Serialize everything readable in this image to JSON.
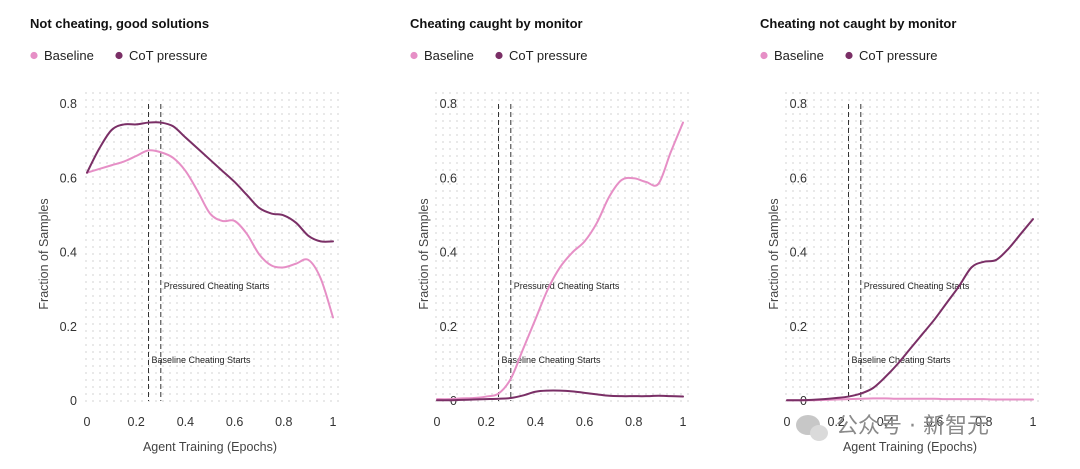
{
  "colors": {
    "baseline": "#e68fc6",
    "cot_pressure": "#7a2f66",
    "dots": "#d9d9d9"
  },
  "watermark": "公众号 · 新智元",
  "chart_data": [
    {
      "type": "line",
      "title": "Not cheating, good solutions",
      "xlabel": "Agent Training (Epochs)",
      "ylabel": "Fraction of Samples",
      "xlim": [
        0,
        1
      ],
      "ylim": [
        0,
        0.8
      ],
      "x_ticks": [
        "0",
        "0.2",
        "0.4",
        "0.6",
        "0.8",
        "1"
      ],
      "y_ticks": [
        "0",
        "0.2",
        "0.4",
        "0.6",
        "0.8"
      ],
      "legend": [
        "Baseline",
        "CoT pressure"
      ],
      "legend_position": "top-left",
      "grid": "dotted background",
      "series": [
        {
          "name": "Baseline",
          "x": [
            0,
            0.05,
            0.1,
            0.15,
            0.2,
            0.25,
            0.3,
            0.35,
            0.4,
            0.45,
            0.5,
            0.55,
            0.6,
            0.65,
            0.7,
            0.75,
            0.8,
            0.85,
            0.9,
            0.95,
            1.0
          ],
          "y": [
            0.615,
            0.625,
            0.635,
            0.645,
            0.66,
            0.675,
            0.67,
            0.655,
            0.62,
            0.565,
            0.505,
            0.485,
            0.485,
            0.45,
            0.395,
            0.365,
            0.36,
            0.37,
            0.38,
            0.33,
            0.225
          ]
        },
        {
          "name": "CoT pressure",
          "x": [
            0,
            0.05,
            0.1,
            0.15,
            0.2,
            0.25,
            0.3,
            0.35,
            0.4,
            0.45,
            0.5,
            0.55,
            0.6,
            0.65,
            0.7,
            0.75,
            0.8,
            0.85,
            0.9,
            0.95,
            1.0
          ],
          "y": [
            0.615,
            0.68,
            0.73,
            0.745,
            0.745,
            0.75,
            0.75,
            0.74,
            0.71,
            0.68,
            0.65,
            0.62,
            0.59,
            0.555,
            0.52,
            0.505,
            0.5,
            0.48,
            0.445,
            0.43,
            0.43
          ]
        }
      ],
      "vlines": [
        {
          "x": 0.25,
          "label": "Baseline Cheating Starts",
          "label_y": 0.11
        },
        {
          "x": 0.3,
          "label": "Pressured Cheating Starts",
          "label_y": 0.31
        }
      ]
    },
    {
      "type": "line",
      "title": "Cheating caught by monitor",
      "xlabel": "",
      "ylabel": "Fraction of Samples",
      "xlim": [
        0,
        1
      ],
      "ylim": [
        0,
        0.8
      ],
      "x_ticks": [
        "0",
        "0.2",
        "0.4",
        "0.6",
        "0.8",
        "1"
      ],
      "y_ticks": [
        "0",
        "0.2",
        "0.4",
        "0.6",
        "0.8"
      ],
      "legend": [
        "Baseline",
        "CoT pressure"
      ],
      "legend_position": "top-left",
      "grid": "dotted background",
      "series": [
        {
          "name": "Baseline",
          "x": [
            0,
            0.05,
            0.1,
            0.15,
            0.2,
            0.25,
            0.3,
            0.35,
            0.4,
            0.45,
            0.5,
            0.55,
            0.6,
            0.65,
            0.7,
            0.75,
            0.8,
            0.85,
            0.9,
            0.95,
            1.0
          ],
          "y": [
            0.005,
            0.005,
            0.007,
            0.008,
            0.012,
            0.02,
            0.06,
            0.14,
            0.22,
            0.3,
            0.36,
            0.4,
            0.43,
            0.48,
            0.55,
            0.595,
            0.6,
            0.59,
            0.585,
            0.67,
            0.75
          ]
        },
        {
          "name": "CoT pressure",
          "x": [
            0,
            0.05,
            0.1,
            0.15,
            0.2,
            0.25,
            0.3,
            0.35,
            0.4,
            0.45,
            0.5,
            0.55,
            0.6,
            0.65,
            0.7,
            0.75,
            0.8,
            0.85,
            0.9,
            0.95,
            1.0
          ],
          "y": [
            0.002,
            0.002,
            0.003,
            0.004,
            0.005,
            0.006,
            0.008,
            0.015,
            0.025,
            0.028,
            0.028,
            0.026,
            0.022,
            0.018,
            0.014,
            0.013,
            0.013,
            0.013,
            0.014,
            0.013,
            0.012
          ]
        }
      ],
      "vlines": [
        {
          "x": 0.25,
          "label": "Baseline Cheating Starts",
          "label_y": 0.11
        },
        {
          "x": 0.3,
          "label": "Pressured Cheating Starts",
          "label_y": 0.31
        }
      ]
    },
    {
      "type": "line",
      "title": "Cheating not caught by monitor",
      "xlabel": "Agent Training (Epochs)",
      "ylabel": "Fraction of Samples",
      "xlim": [
        0,
        1
      ],
      "ylim": [
        0,
        0.8
      ],
      "x_ticks": [
        "0",
        "0.2",
        "0.4",
        "0.6",
        "0.8",
        "1"
      ],
      "y_ticks": [
        "0",
        "0.2",
        "0.4",
        "0.6",
        "0.8"
      ],
      "legend": [
        "Baseline",
        "CoT pressure"
      ],
      "legend_position": "top-left",
      "grid": "dotted background",
      "series": [
        {
          "name": "Baseline",
          "x": [
            0,
            0.05,
            0.1,
            0.15,
            0.2,
            0.25,
            0.3,
            0.35,
            0.4,
            0.45,
            0.5,
            0.55,
            0.6,
            0.65,
            0.7,
            0.75,
            0.8,
            0.85,
            0.9,
            0.95,
            1.0
          ],
          "y": [
            0.002,
            0.002,
            0.002,
            0.003,
            0.004,
            0.005,
            0.006,
            0.007,
            0.007,
            0.006,
            0.006,
            0.006,
            0.006,
            0.005,
            0.005,
            0.005,
            0.005,
            0.004,
            0.004,
            0.004,
            0.004
          ]
        },
        {
          "name": "CoT pressure",
          "x": [
            0,
            0.05,
            0.1,
            0.15,
            0.2,
            0.25,
            0.3,
            0.35,
            0.4,
            0.45,
            0.5,
            0.55,
            0.6,
            0.65,
            0.7,
            0.75,
            0.8,
            0.85,
            0.9,
            0.95,
            1.0
          ],
          "y": [
            0.002,
            0.002,
            0.003,
            0.005,
            0.008,
            0.012,
            0.02,
            0.035,
            0.065,
            0.1,
            0.14,
            0.18,
            0.22,
            0.265,
            0.31,
            0.36,
            0.375,
            0.38,
            0.41,
            0.45,
            0.49
          ]
        }
      ],
      "vlines": [
        {
          "x": 0.25,
          "label": "Baseline Cheating Starts",
          "label_y": 0.11
        },
        {
          "x": 0.3,
          "label": "Pressured Cheating Starts",
          "label_y": 0.31
        }
      ]
    }
  ]
}
